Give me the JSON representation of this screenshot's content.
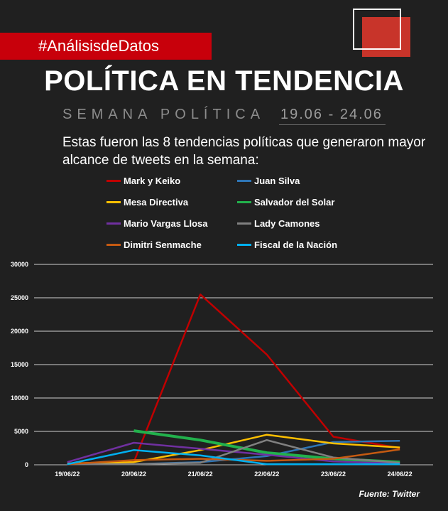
{
  "header": {
    "hashtag": "#AnálisisdeDatos",
    "title": "POLÍTICA EN TENDENCIA",
    "subtitle": "SEMANA POLÍTICA",
    "dates": "19.06 - 24.06",
    "intro": "Estas fueron las 8 tendencias políticas que generaron mayor alcance de tweets en la semana:"
  },
  "source": "Fuente: Twitter",
  "colors": {
    "background": "#202020",
    "accent": "#c8000b"
  },
  "chart_data": {
    "type": "line",
    "title": "",
    "xlabel": "",
    "ylabel": "",
    "x": [
      "19/06/22",
      "20/06/22",
      "21/06/22",
      "22/06/22",
      "23/06/22",
      "24/06/22"
    ],
    "ylim": [
      0,
      30000
    ],
    "yticks": [
      0,
      5000,
      10000,
      15000,
      20000,
      25000,
      30000
    ],
    "grid": true,
    "legend_position": "top",
    "series": [
      {
        "name": "Mark y Keiko",
        "color": "#c00000",
        "values": [
          200,
          400,
          25500,
          16500,
          4200,
          2500
        ]
      },
      {
        "name": "Juan Silva",
        "color": "#2e75b6",
        "values": [
          100,
          100,
          400,
          1300,
          3400,
          3600
        ]
      },
      {
        "name": "Mesa Directiva",
        "color": "#ffc000",
        "values": [
          200,
          400,
          2200,
          4500,
          3200,
          2600
        ]
      },
      {
        "name": "Salvador del Solar",
        "color": "#22b14c",
        "values": [
          null,
          5100,
          3700,
          1800,
          900,
          400
        ]
      },
      {
        "name": "Mario Vargas Llosa",
        "color": "#7030a0",
        "values": [
          400,
          3300,
          2400,
          1500,
          500,
          200
        ]
      },
      {
        "name": "Lady Camones",
        "color": "#808080",
        "values": [
          100,
          100,
          300,
          3700,
          1100,
          300
        ]
      },
      {
        "name": "Dimitri Senmache",
        "color": "#c55a11",
        "values": [
          100,
          700,
          900,
          600,
          900,
          2300
        ]
      },
      {
        "name": "Fiscal de la Nación",
        "color": "#00b0f0",
        "values": [
          100,
          2200,
          1400,
          100,
          100,
          100
        ]
      }
    ]
  }
}
